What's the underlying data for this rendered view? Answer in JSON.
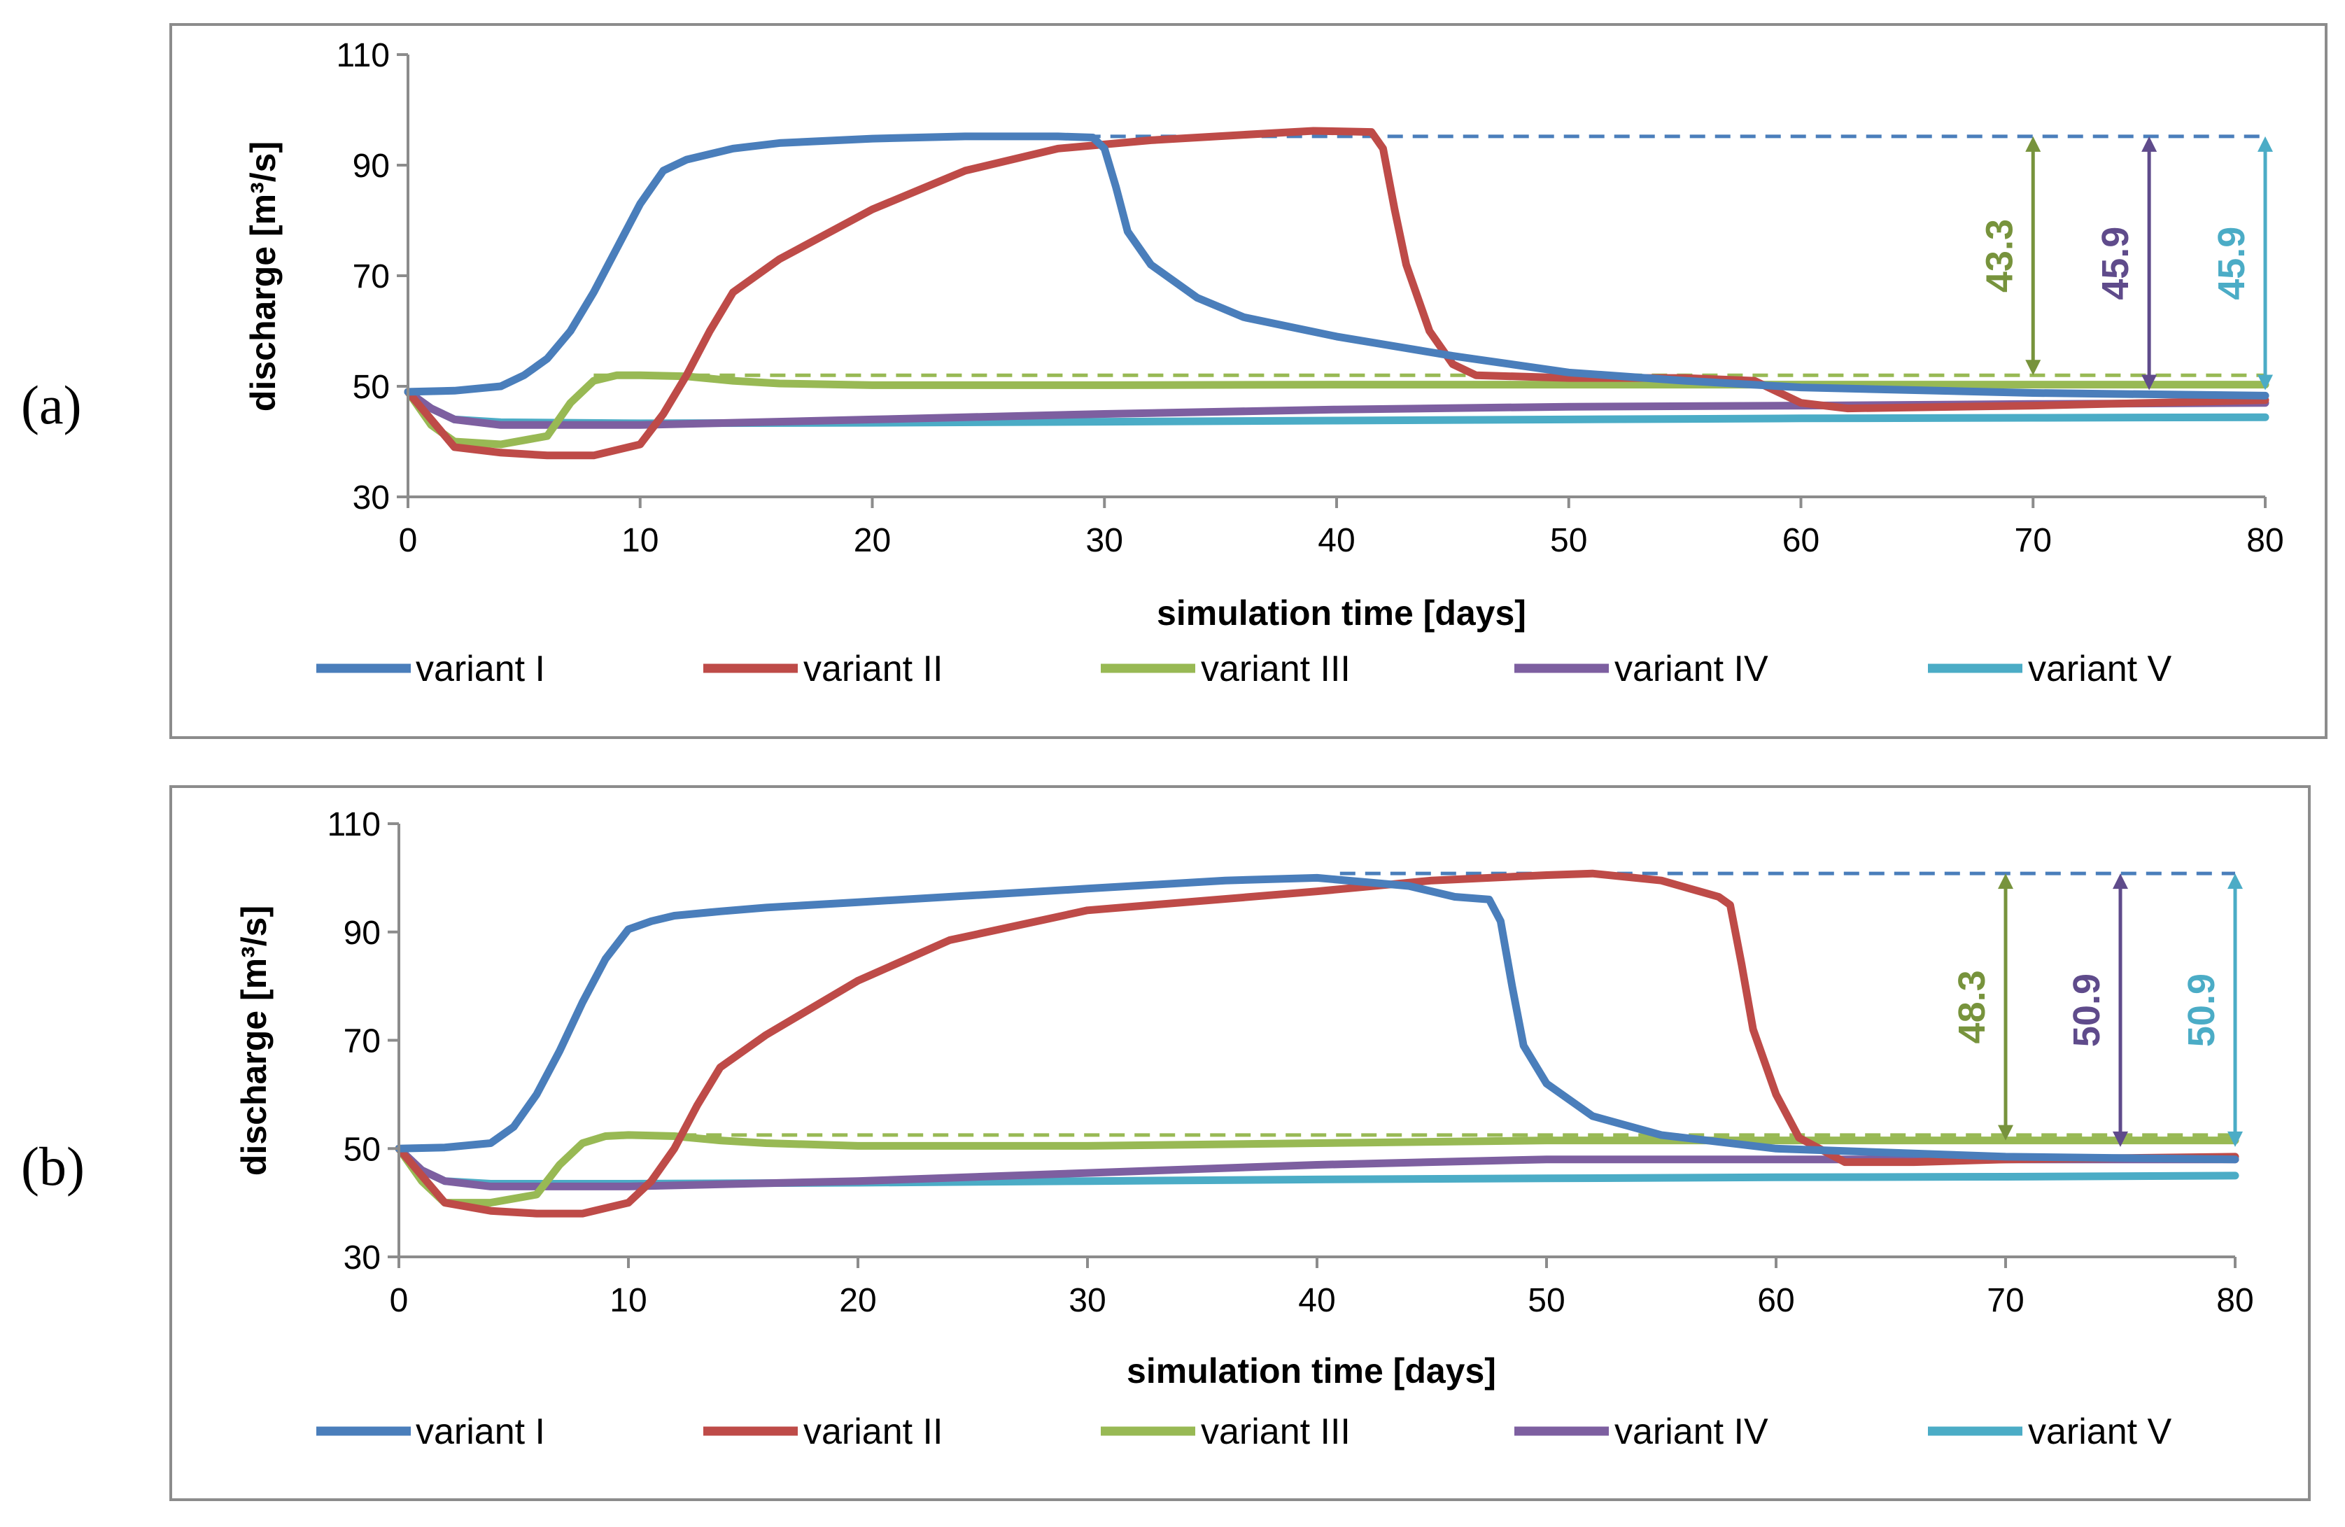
{
  "figure": {
    "panels": [
      {
        "label": "(a)",
        "chart_data": {
          "type": "line",
          "xlabel": "simulation time [days]",
          "ylabel": "discharge [m³/s]",
          "xlim": [
            0,
            80
          ],
          "ylim": [
            30,
            110
          ],
          "xticks": [
            0,
            10,
            20,
            30,
            40,
            50,
            60,
            70,
            80
          ],
          "yticks": [
            30,
            50,
            70,
            90,
            110
          ],
          "legend": "bottom",
          "series": [
            {
              "name": "variant I",
              "color": "#4a7ebb",
              "x": [
                0,
                2,
                4,
                5,
                6,
                7,
                8,
                9,
                10,
                11,
                12,
                14,
                16,
                20,
                24,
                28,
                29.5,
                30,
                30.5,
                31,
                32,
                34,
                36,
                40,
                45,
                50,
                55,
                60,
                70,
                80
              ],
              "y": [
                49,
                49.2,
                50,
                52,
                55,
                60,
                67,
                75,
                83,
                89,
                91,
                93,
                94,
                94.8,
                95.2,
                95.2,
                95,
                93,
                86,
                78,
                72,
                66,
                62.5,
                59,
                55.5,
                52.5,
                51,
                49.8,
                48.8,
                48.3
              ]
            },
            {
              "name": "variant II",
              "color": "#be4b48",
              "x": [
                0,
                2,
                4,
                6,
                8,
                10,
                11,
                12,
                13,
                14,
                16,
                20,
                24,
                28,
                32,
                36,
                39,
                41.5,
                42,
                42.5,
                43,
                44,
                45,
                46,
                50,
                55,
                58,
                60,
                62,
                70,
                80
              ],
              "y": [
                49,
                39,
                38,
                37.5,
                37.5,
                39.5,
                45,
                52,
                60,
                67,
                73,
                82,
                89,
                93,
                94.5,
                95.5,
                96.2,
                96,
                93,
                82,
                72,
                60,
                54,
                52,
                51.5,
                51.5,
                51,
                47,
                46,
                46.5,
                47.5
              ]
            },
            {
              "name": "variant III",
              "color": "#98b954",
              "x": [
                0,
                1,
                2,
                4,
                6,
                7,
                8,
                9,
                10,
                12,
                14,
                16,
                20,
                30,
                40,
                50,
                60,
                70,
                80
              ],
              "y": [
                49,
                43,
                40,
                39.5,
                41,
                47,
                51,
                52,
                52,
                51.8,
                51,
                50.5,
                50.2,
                50.2,
                50.3,
                50.3,
                50.3,
                50.3,
                50.3
              ]
            },
            {
              "name": "variant IV",
              "color": "#7d5fa0",
              "x": [
                0,
                1,
                2,
                4,
                10,
                20,
                30,
                40,
                50,
                60,
                70,
                80
              ],
              "y": [
                49,
                46,
                44,
                43,
                43,
                44,
                45,
                45.8,
                46.3,
                46.5,
                46.8,
                47
              ]
            },
            {
              "name": "variant V",
              "color": "#4bacc6",
              "x": [
                0,
                1,
                2,
                4,
                10,
                20,
                30,
                40,
                50,
                60,
                70,
                80
              ],
              "y": [
                49,
                46,
                44,
                43.5,
                43.3,
                43.4,
                43.6,
                43.8,
                44,
                44.2,
                44.3,
                44.4
              ]
            }
          ],
          "reference_lines": [
            {
              "color": "#4a7ebb",
              "y": 95.2,
              "x_start": 27,
              "x_end": 80
            },
            {
              "color": "#98b954",
              "y": 52,
              "x_start": 8,
              "x_end": 80
            }
          ],
          "annotations": [
            {
              "text": "43.3",
              "x": 70,
              "y_from": 52,
              "y_to": 95.2,
              "color": "#77933c"
            },
            {
              "text": "45.9",
              "x": 75,
              "y_from": 49.3,
              "y_to": 95.2,
              "color": "#5f4b8b"
            },
            {
              "text": "45.9",
              "x": 80,
              "y_from": 49.3,
              "y_to": 95.2,
              "color": "#4bacc6"
            }
          ]
        }
      },
      {
        "label": "(b)",
        "chart_data": {
          "type": "line",
          "xlabel": "simulation time [days]",
          "ylabel": "discharge [m³/s]",
          "xlim": [
            0,
            80
          ],
          "ylim": [
            30,
            110
          ],
          "xticks": [
            0,
            10,
            20,
            30,
            40,
            50,
            60,
            70,
            80
          ],
          "yticks": [
            30,
            50,
            70,
            90,
            110
          ],
          "legend": "bottom",
          "series": [
            {
              "name": "variant I",
              "color": "#4a7ebb",
              "x": [
                0,
                2,
                4,
                5,
                6,
                7,
                8,
                9,
                10,
                11,
                12,
                14,
                16,
                20,
                30,
                36,
                40,
                44,
                46,
                47.5,
                48,
                48.5,
                49,
                50,
                52,
                55,
                60,
                70,
                80
              ],
              "y": [
                50,
                50.2,
                51,
                54,
                60,
                68,
                77,
                85,
                90.5,
                92,
                93,
                93.8,
                94.5,
                95.5,
                98,
                99.5,
                100,
                98.5,
                96.5,
                96,
                92,
                80,
                69,
                62,
                56,
                52.5,
                50,
                48.5,
                48
              ]
            },
            {
              "name": "variant II",
              "color": "#be4b48",
              "x": [
                0,
                2,
                4,
                6,
                8,
                10,
                11,
                12,
                13,
                14,
                16,
                20,
                24,
                30,
                40,
                45,
                50,
                52,
                55,
                57.5,
                58,
                58.5,
                59,
                60,
                61,
                63,
                66,
                70,
                80
              ],
              "y": [
                50,
                40,
                38.5,
                38,
                38,
                40,
                44,
                50,
                58,
                65,
                71,
                81,
                88.5,
                94,
                97.5,
                99.5,
                100.5,
                100.8,
                99.5,
                96.5,
                95,
                84,
                72,
                60,
                52,
                47.5,
                47.5,
                48,
                48.5
              ]
            },
            {
              "name": "variant III",
              "color": "#98b954",
              "x": [
                0,
                1,
                2,
                4,
                6,
                7,
                8,
                9,
                10,
                12,
                14,
                16,
                20,
                30,
                40,
                50,
                60,
                70,
                80
              ],
              "y": [
                50,
                44,
                40,
                40,
                41.5,
                47,
                51,
                52.3,
                52.5,
                52.3,
                51.5,
                51,
                50.5,
                50.5,
                51,
                51.5,
                51.5,
                51.5,
                51.5
              ]
            },
            {
              "name": "variant IV",
              "color": "#7d5fa0",
              "x": [
                0,
                1,
                2,
                4,
                10,
                20,
                30,
                40,
                50,
                60,
                70,
                80
              ],
              "y": [
                50,
                46,
                44,
                43,
                43,
                44,
                45.5,
                47,
                48,
                48,
                48,
                48
              ]
            },
            {
              "name": "variant V",
              "color": "#4bacc6",
              "x": [
                0,
                1,
                2,
                4,
                10,
                20,
                30,
                40,
                50,
                60,
                70,
                80
              ],
              "y": [
                50,
                46,
                44,
                43.5,
                43.5,
                43.7,
                44,
                44.3,
                44.5,
                44.7,
                44.8,
                45
              ]
            }
          ],
          "reference_lines": [
            {
              "color": "#4a7ebb",
              "y": 100.8,
              "x_start": 41,
              "x_end": 80
            },
            {
              "color": "#98b954",
              "y": 52.5,
              "x_start": 9,
              "x_end": 80
            }
          ],
          "annotations": [
            {
              "text": "48.3",
              "x": 70,
              "y_from": 51.5,
              "y_to": 100.8,
              "color": "#77933c"
            },
            {
              "text": "50.9",
              "x": 75,
              "y_from": 50.3,
              "y_to": 100.8,
              "color": "#5f4b8b"
            },
            {
              "text": "50.9",
              "x": 80,
              "y_from": 50.3,
              "y_to": 100.8,
              "color": "#4bacc6"
            }
          ]
        }
      }
    ]
  }
}
